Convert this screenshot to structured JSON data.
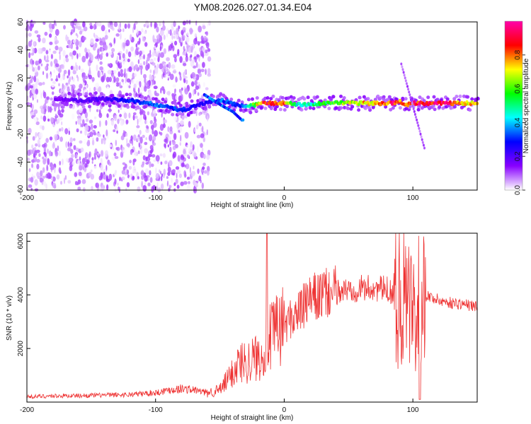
{
  "title": "YM08.2026.027.01.34.E04",
  "chart_data": [
    {
      "type": "heatmap",
      "name": "spectrogram",
      "xlabel": "Height of straight line (km)",
      "ylabel": "Frequency (Hz)",
      "xlim": [
        -200,
        150
      ],
      "ylim": [
        -60,
        60
      ],
      "xticks": [
        -200,
        -100,
        0,
        100
      ],
      "yticks": [
        -60,
        -40,
        -20,
        0,
        20,
        40,
        60
      ],
      "ridge": {
        "x": [
          -175,
          -160,
          -140,
          -120,
          -100,
          -80,
          -62,
          -48,
          -38,
          -33,
          -28,
          -15,
          0,
          10,
          40,
          60,
          80,
          85,
          90,
          95,
          100,
          120,
          150
        ],
        "freq": [
          5,
          4,
          5,
          4,
          1,
          -3,
          2,
          4,
          1,
          0,
          0,
          2,
          2,
          1,
          2,
          2,
          2,
          2,
          3,
          1,
          2,
          2,
          2
        ],
        "amplitude": [
          0.15,
          0.2,
          0.2,
          0.3,
          0.35,
          0.3,
          0.25,
          0.35,
          0.3,
          0.3,
          0.45,
          0.9,
          0.8,
          0.45,
          0.6,
          0.75,
          0.8,
          0.9,
          0.8,
          0.8,
          0.9,
          0.95,
          0.7
        ]
      },
      "colorbar": {
        "label": "Normalized spectral amplitude",
        "range": [
          0,
          1
        ],
        "ticks": [
          "0.0",
          "0.2",
          "0.4",
          "0.6",
          "0.8"
        ],
        "colors": [
          "#ffffff",
          "#8800ff",
          "#0000ff",
          "#00ffff",
          "#00ff00",
          "#ffff00",
          "#ff0000",
          "#ff00aa"
        ]
      }
    },
    {
      "type": "line",
      "name": "snr",
      "xlabel": "Height of straight line (km)",
      "ylabel": "SNR (10 * v/v)",
      "xlim": [
        -200,
        150
      ],
      "ylim": [
        0,
        6300
      ],
      "xticks": [
        -200,
        -100,
        0,
        100
      ],
      "yticks": [
        2000,
        4000,
        6000
      ],
      "color": "#ee3333",
      "series": {
        "name": "SNR",
        "x": [
          -200,
          -180,
          -160,
          -140,
          -120,
          -100,
          -90,
          -80,
          -70,
          -60,
          -50,
          -40,
          -35,
          -30,
          -25,
          -20,
          -17,
          -15,
          -10,
          -5,
          0,
          10,
          20,
          30,
          40,
          50,
          60,
          70,
          80,
          90,
          95,
          100,
          103,
          106,
          110,
          120,
          130,
          140,
          150
        ],
        "y": [
          200,
          230,
          240,
          260,
          280,
          350,
          450,
          500,
          450,
          350,
          450,
          1100,
          1500,
          1500,
          1600,
          1700,
          1800,
          2200,
          2400,
          2700,
          2900,
          3300,
          3800,
          4000,
          4100,
          4200,
          4250,
          4250,
          4200,
          4000,
          3800,
          3300,
          3900,
          3800,
          4000,
          3800,
          3700,
          3650,
          3550
        ]
      }
    }
  ]
}
